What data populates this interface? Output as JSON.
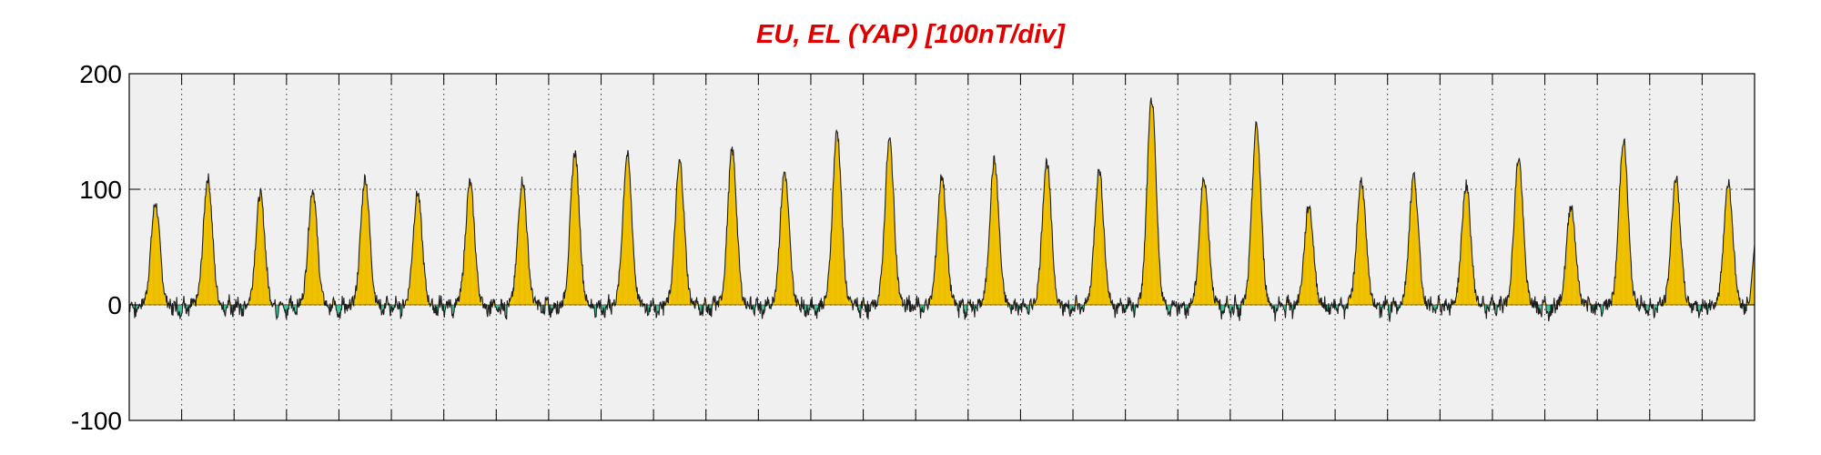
{
  "chart_data": {
    "type": "area",
    "title": "EU, EL (YAP)  [100nT/div]",
    "title_color": "#e00000",
    "ylim": [
      -100,
      200
    ],
    "yticks": [
      200,
      100,
      0,
      -100
    ],
    "ytick_labels": [
      "200",
      "100",
      "0",
      "-100"
    ],
    "xlim": [
      0,
      31
    ],
    "x_grid_count": 31,
    "grid": "dotted vertical daily lines, dotted horizontal at 100",
    "colors": {
      "background": "#f0f0f0",
      "positive_fill": "#f5c800",
      "negative_fill": "#3cc9a0",
      "trace": "#202020"
    },
    "days": [
      {
        "peak": 88,
        "front": 0.0
      },
      {
        "peak": 110,
        "front": 0.0
      },
      {
        "peak": 96,
        "front": 0.0
      },
      {
        "peak": 100,
        "front": 0.0
      },
      {
        "peak": 110,
        "front": 0.0
      },
      {
        "peak": 97,
        "front": 0.0
      },
      {
        "peak": 106,
        "front": 0.0
      },
      {
        "peak": 108,
        "front": 0.0
      },
      {
        "peak": 132,
        "front": 0.0
      },
      {
        "peak": 130,
        "front": 0.0
      },
      {
        "peak": 124,
        "front": 0.0
      },
      {
        "peak": 134,
        "front": 0.0
      },
      {
        "peak": 115,
        "front": 0.0
      },
      {
        "peak": 150,
        "front": 0.0
      },
      {
        "peak": 143,
        "front": 0.0
      },
      {
        "peak": 112,
        "front": 0.0
      },
      {
        "peak": 125,
        "front": 0.0
      },
      {
        "peak": 124,
        "front": 0.0
      },
      {
        "peak": 117,
        "front": 0.0
      },
      {
        "peak": 178,
        "front": 0.0
      },
      {
        "peak": 110,
        "front": 0.0
      },
      {
        "peak": 155,
        "front": 0.0
      },
      {
        "peak": 86,
        "front": 0.0
      },
      {
        "peak": 108,
        "front": 0.0
      },
      {
        "peak": 112,
        "front": 0.0
      },
      {
        "peak": 104,
        "front": 0.0
      },
      {
        "peak": 127,
        "front": 0.0
      },
      {
        "peak": 86,
        "front": 0.0
      },
      {
        "peak": 143,
        "front": 0.0
      },
      {
        "peak": 110,
        "front": 0.0
      },
      {
        "peak": 106,
        "front": 0.0
      }
    ],
    "end_value": 52
  }
}
